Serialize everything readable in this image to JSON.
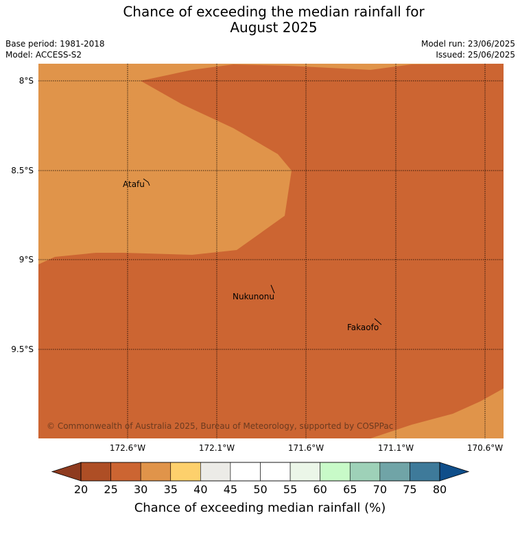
{
  "title": {
    "line1": "Chance of exceeding the median rainfall for",
    "line2": "August 2025"
  },
  "meta": {
    "base_period": "Base period: 1981-2018",
    "model": "Model: ACCESS-S2",
    "model_run": "Model run: 23/06/2025",
    "issued": "Issued: 25/06/2025"
  },
  "map": {
    "lat_labels": [
      "8°S",
      "8.5°S",
      "9°S",
      "9.5°S"
    ],
    "lon_labels": [
      "172.6°W",
      "172.1°W",
      "171.6°W",
      "171.1°W",
      "170.6°W"
    ],
    "places": [
      "Atafu",
      "Nukunonu",
      "Fakaofo"
    ],
    "copyright": "© Commonwealth of Australia 2025, Bureau of Meteorology, supported by COSPPac",
    "region_colors": {
      "band_25_30": "#cc6532",
      "band_30_35": "#e0944a"
    }
  },
  "colorbar": {
    "ticks": [
      "20",
      "25",
      "30",
      "35",
      "40",
      "45",
      "50",
      "55",
      "60",
      "65",
      "70",
      "75",
      "80"
    ],
    "under_color": "#8e3b1f",
    "over_color": "#0f4e8a",
    "colors": [
      "#ae4e25",
      "#cc6532",
      "#e0944a",
      "#fdd06c",
      "#ecebe7",
      "#ffffff",
      "#ffffff",
      "#ebf6e8",
      "#c8fac8",
      "#9ed1b8",
      "#70a4a7",
      "#3e7a9a"
    ],
    "label": "Chance of exceeding median rainfall (%)"
  }
}
